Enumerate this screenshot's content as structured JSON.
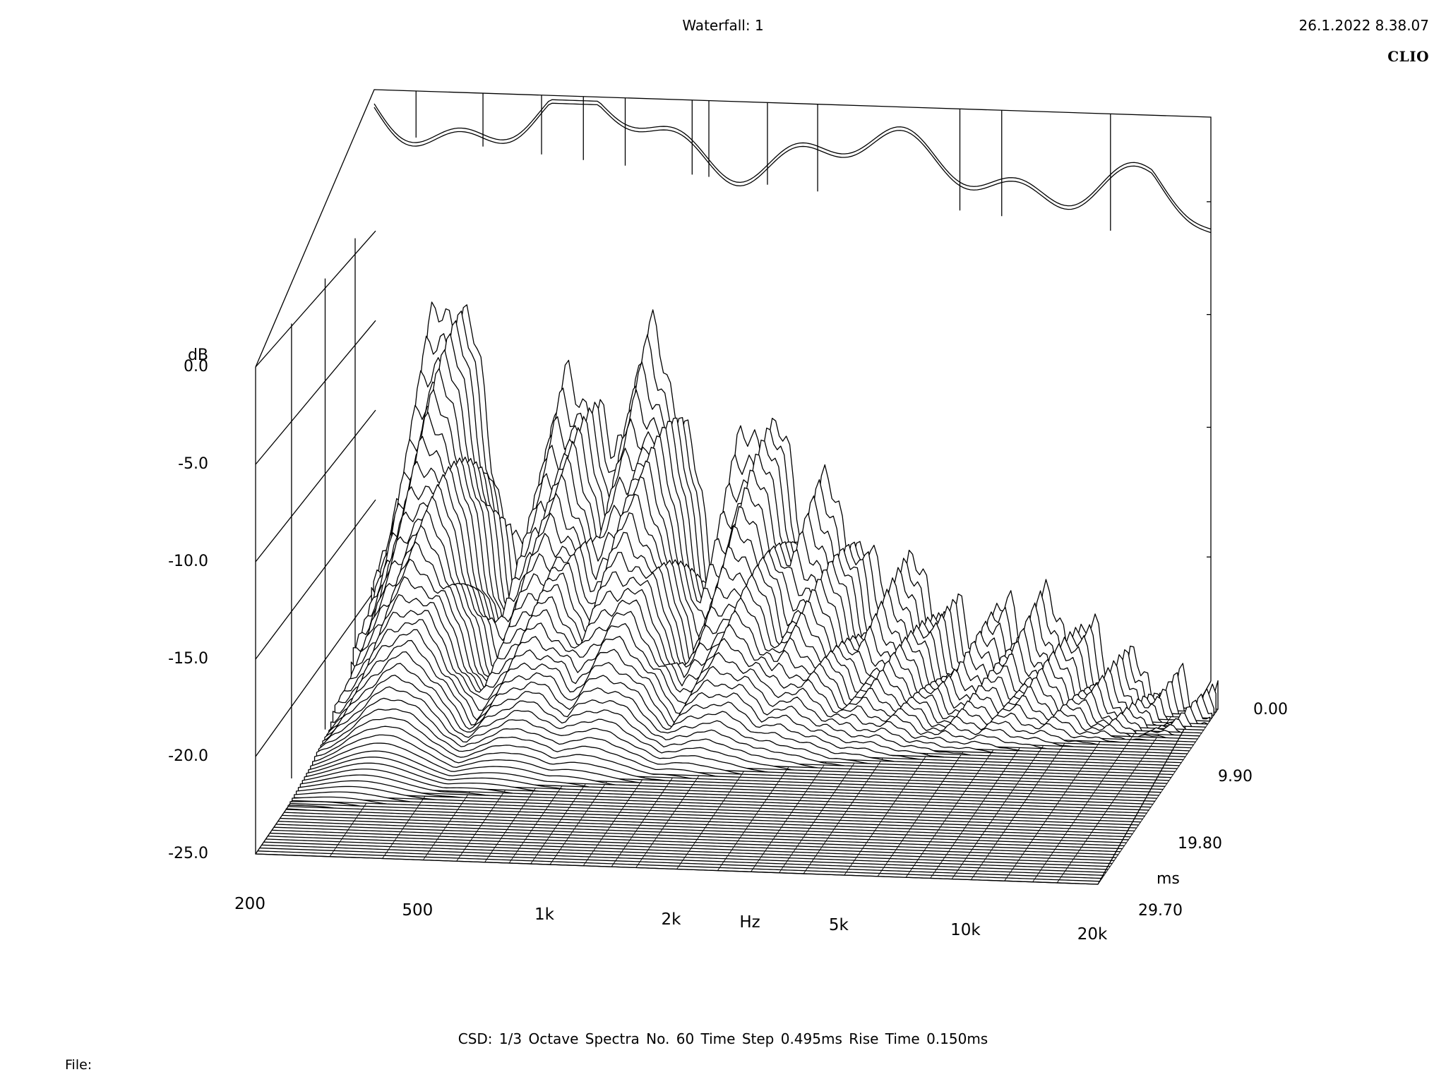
{
  "header": {
    "title": "Waterfall: 1",
    "timestamp": "26.1.2022 8.38.07",
    "brand": "CLIO"
  },
  "footer": {
    "settings": "CSD:   1/3 Octave   Spectra No. 60   Time Step 0.495ms   Rise Time 0.150ms",
    "file_label": "File:"
  },
  "chart_data": {
    "type": "waterfall",
    "title": "Waterfall: 1",
    "y_axis": {
      "label": "dB",
      "ticks": [
        "0.0",
        "-5.0",
        "-10.0",
        "-15.0",
        "-20.0",
        "-25.0"
      ],
      "range": [
        -25,
        0
      ]
    },
    "x_axis": {
      "label": "Hz",
      "ticks": [
        "200",
        "500",
        "1k",
        "2k",
        "5k",
        "10k",
        "20k"
      ],
      "range": [
        200,
        20000
      ],
      "scale": "log"
    },
    "z_axis": {
      "label": "ms",
      "ticks": [
        "0.00",
        "9.90",
        "19.80",
        "29.70"
      ],
      "range": [
        0,
        29.7
      ]
    },
    "spectra_count": 60,
    "time_step_ms": 0.495,
    "rise_time_ms": 0.15,
    "smoothing": "1/3 Octave",
    "line_color": "#000000",
    "background_color": "#ffffff"
  }
}
